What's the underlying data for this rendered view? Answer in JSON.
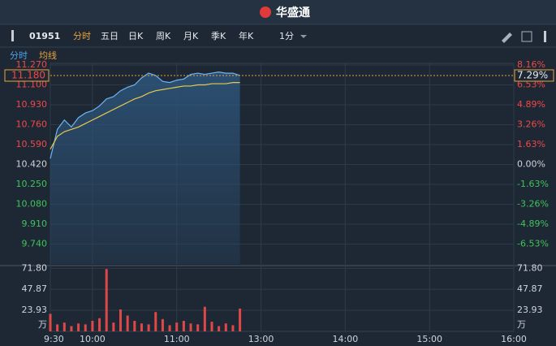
{
  "header": {
    "logo": "华盛通"
  },
  "toolbar": {
    "code": "01951",
    "tabs": [
      "分时",
      "五日",
      "日K",
      "周K",
      "月K",
      "季K",
      "年K"
    ],
    "period": "1分"
  },
  "subtabs": [
    "分时",
    "均线"
  ],
  "chart_data": [
    {
      "type": "line",
      "xlim": [
        0,
        330
      ],
      "xticks": [
        {
          "value": 0,
          "label": "9:30"
        },
        {
          "value": 30,
          "label": "10:00"
        },
        {
          "value": 90,
          "label": "11:00"
        },
        {
          "value": 150,
          "label": "13:00"
        },
        {
          "value": 210,
          "label": "14:00"
        },
        {
          "value": 270,
          "label": "15:00"
        },
        {
          "value": 330,
          "label": "16:00"
        }
      ],
      "ylim": [
        9.57,
        11.27
      ],
      "yticks": [
        {
          "value": 11.27,
          "label": "11.270"
        },
        {
          "value": 11.1,
          "label": "11.100"
        },
        {
          "value": 10.93,
          "label": "10.930"
        },
        {
          "value": 10.76,
          "label": "10.760"
        },
        {
          "value": 10.59,
          "label": "10.590"
        },
        {
          "value": 10.42,
          "label": "10.420"
        },
        {
          "value": 10.25,
          "label": "10.250"
        },
        {
          "value": 10.08,
          "label": "10.080"
        },
        {
          "value": 9.91,
          "label": "9.910"
        },
        {
          "value": 9.74,
          "label": "9.740"
        }
      ],
      "y2lim": [
        -8.16,
        8.16
      ],
      "y2ticks": [
        {
          "value": 8.16,
          "label": "8.16%"
        },
        {
          "value": 6.53,
          "label": "6.53%"
        },
        {
          "value": 4.89,
          "label": "4.89%"
        },
        {
          "value": 3.26,
          "label": "3.26%"
        },
        {
          "value": 1.63,
          "label": "1.63%"
        },
        {
          "value": 0,
          "label": "0.00%"
        },
        {
          "value": -1.63,
          "label": "-1.63%"
        },
        {
          "value": -3.26,
          "label": "-3.26%"
        },
        {
          "value": -4.89,
          "label": "-4.89%"
        },
        {
          "value": -6.53,
          "label": "-6.53%"
        }
      ],
      "last_price": {
        "value": 11.18,
        "label": "11.180"
      },
      "last_change": {
        "value": 7.29,
        "label": "7.29%"
      },
      "x": [
        0,
        5,
        10,
        15,
        20,
        25,
        30,
        35,
        40,
        45,
        50,
        55,
        60,
        65,
        70,
        75,
        80,
        85,
        90,
        95,
        100,
        105,
        110,
        115,
        120,
        125,
        130,
        135
      ],
      "series": [
        {
          "name": "分时",
          "color": "#6fb3f0",
          "values": [
            10.47,
            10.72,
            10.8,
            10.74,
            10.82,
            10.86,
            10.88,
            10.92,
            10.98,
            11.0,
            11.05,
            11.08,
            11.1,
            11.16,
            11.2,
            11.18,
            11.13,
            11.12,
            11.14,
            11.15,
            11.19,
            11.2,
            11.19,
            11.2,
            11.21,
            11.2,
            11.2,
            11.18
          ]
        },
        {
          "name": "均线",
          "color": "#e8c94a",
          "values": [
            10.55,
            10.66,
            10.7,
            10.72,
            10.74,
            10.77,
            10.8,
            10.83,
            10.86,
            10.89,
            10.92,
            10.95,
            10.98,
            11.0,
            11.03,
            11.05,
            11.06,
            11.07,
            11.08,
            11.09,
            11.09,
            11.1,
            11.1,
            11.11,
            11.11,
            11.11,
            11.12,
            11.12
          ]
        }
      ]
    },
    {
      "type": "bar",
      "unit": "万",
      "xlim": [
        0,
        330
      ],
      "ylim": [
        0,
        74
      ],
      "yticks": [
        {
          "value": 71.8,
          "label": "71.80"
        },
        47.87,
        23.93
      ],
      "x": [
        0,
        5,
        10,
        15,
        20,
        25,
        30,
        35,
        40,
        45,
        50,
        55,
        60,
        65,
        70,
        75,
        80,
        85,
        90,
        95,
        100,
        105,
        110,
        115,
        120,
        125,
        130,
        135
      ],
      "color": "#e04848",
      "values": [
        20,
        8,
        10,
        6,
        9,
        8,
        12,
        15,
        71,
        10,
        25,
        18,
        12,
        9,
        8,
        22,
        14,
        7,
        10,
        12,
        9,
        8,
        28,
        11,
        6,
        9,
        7,
        26
      ]
    }
  ]
}
